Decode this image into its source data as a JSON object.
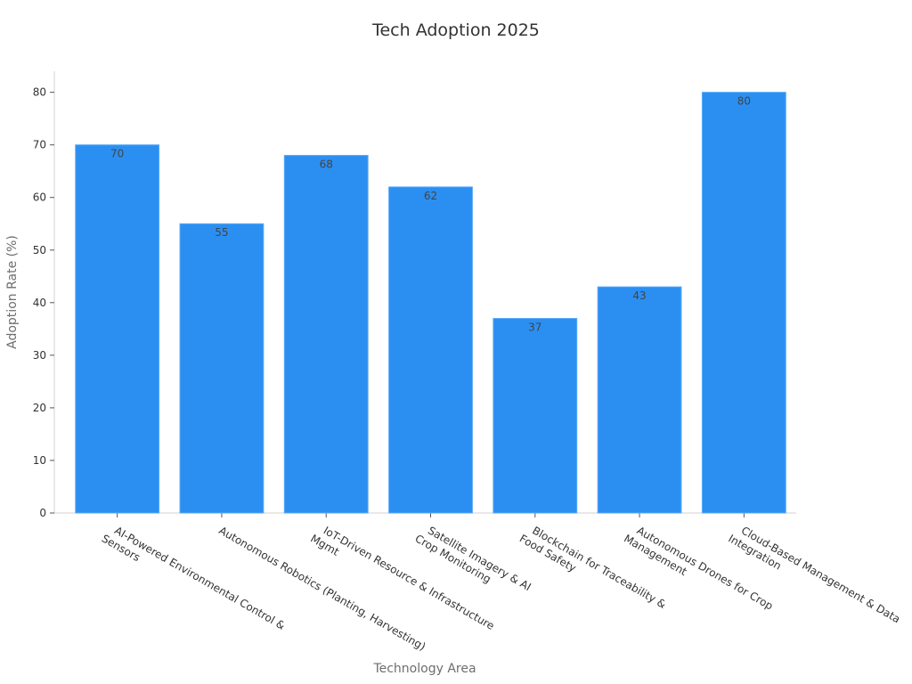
{
  "chart_data": {
    "type": "bar",
    "title": "Tech Adoption 2025",
    "xlabel": "Technology Area",
    "ylabel": "Adoption Rate (%)",
    "ylim": [
      0,
      84
    ],
    "yticks": [
      0,
      10,
      20,
      30,
      40,
      50,
      60,
      70,
      80
    ],
    "categories": [
      [
        "AI-Powered Environmental Control &",
        "Sensors"
      ],
      [
        "Autonomous Robotics (Planting, Harvesting)"
      ],
      [
        "IoT-Driven Resource & Infrastructure",
        "Mgmt"
      ],
      [
        "Satellite Imagery & AI",
        "Crop Monitoring"
      ],
      [
        "Blockchain for Traceability &",
        "Food Safety"
      ],
      [
        "Autonomous Drones for Crop",
        "Management"
      ],
      [
        "Cloud-Based Management & Data",
        "Integration"
      ]
    ],
    "values": [
      70,
      55,
      68,
      62,
      37,
      43,
      80
    ],
    "data_labels": true,
    "grid": false,
    "legend": "none",
    "bar_color": "#2b8ff2"
  }
}
